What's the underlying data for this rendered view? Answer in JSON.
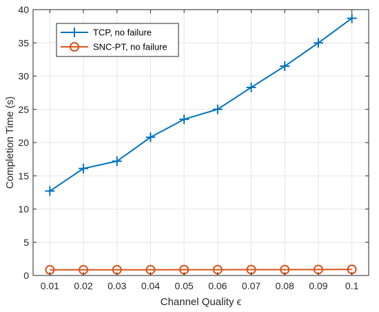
{
  "chart_data": {
    "type": "line",
    "xlabel": "Channel Quality ϵ",
    "ylabel": "Completion Time (s)",
    "x": [
      0.01,
      0.02,
      0.03,
      0.04,
      0.05,
      0.06,
      0.07,
      0.08,
      0.09,
      0.1
    ],
    "x_tick_labels": [
      "0.01",
      "0.02",
      "0.03",
      "0.04",
      "0.05",
      "0.06",
      "0.07",
      "0.08",
      "0.09",
      "0.1"
    ],
    "xlim": [
      0.005,
      0.105
    ],
    "ylim": [
      0,
      40
    ],
    "y_ticks": [
      0,
      5,
      10,
      15,
      20,
      25,
      30,
      35,
      40
    ],
    "grid": true,
    "legend_position": "top-left",
    "series": [
      {
        "name": "TCP, no failure",
        "marker": "plus",
        "color": "#0072BD",
        "values": [
          12.7,
          16.1,
          17.2,
          20.8,
          23.5,
          25.0,
          28.3,
          31.5,
          35.0,
          38.7
        ]
      },
      {
        "name": "SNC-PT, no failure",
        "marker": "circle",
        "color": "#D95319",
        "values": [
          0.85,
          0.85,
          0.86,
          0.86,
          0.87,
          0.87,
          0.88,
          0.88,
          0.9,
          0.92
        ]
      }
    ]
  }
}
